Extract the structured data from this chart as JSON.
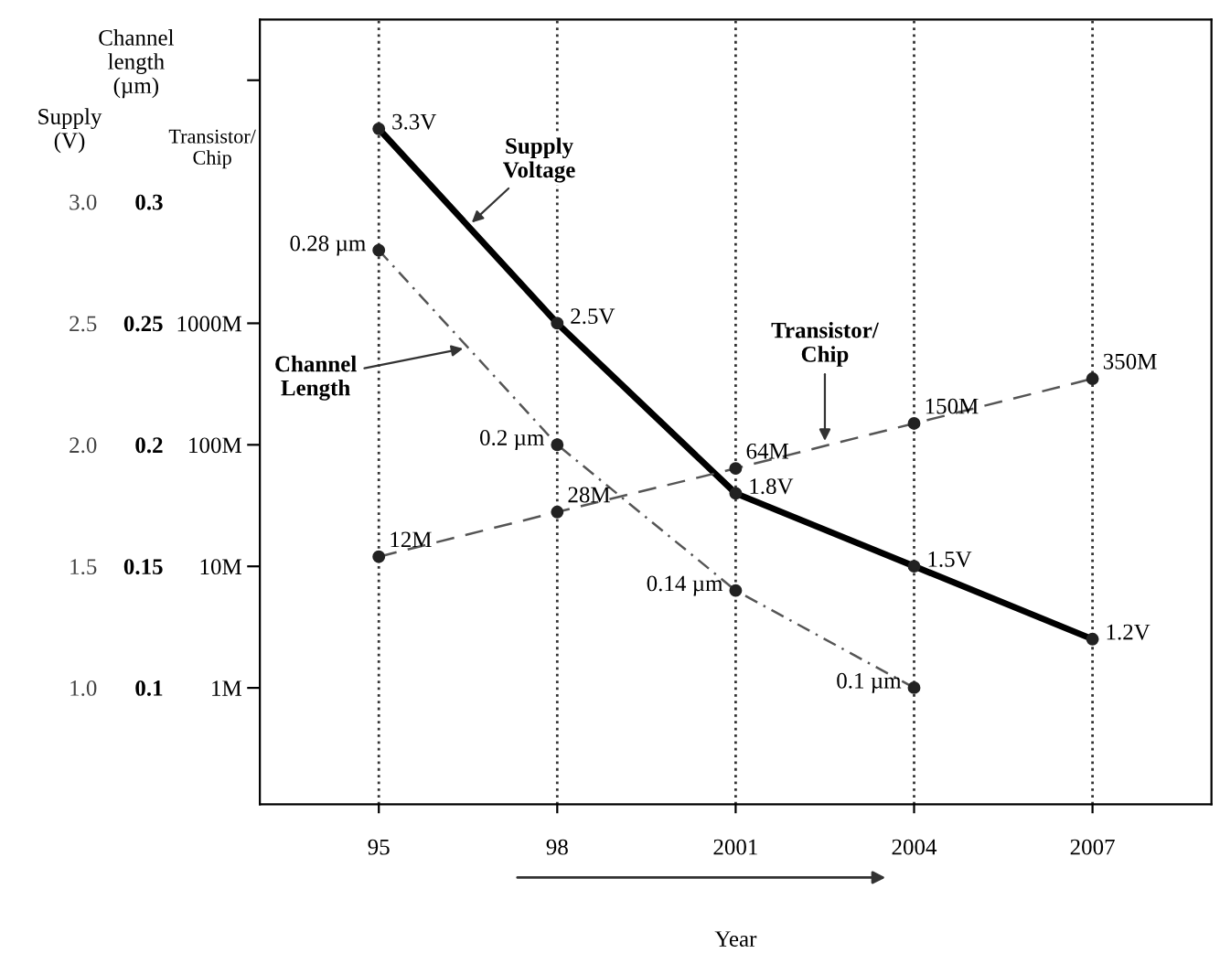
{
  "chart_data": {
    "type": "line",
    "x": [
      1995,
      1998,
      2001,
      2004,
      2007
    ],
    "xlabel": "Year",
    "ylabel": "Supply (V)",
    "y2label": "Channel length (µm)",
    "y3label": "Transistor/ Chip",
    "xlim": [
      1993,
      2009
    ],
    "xticks": [
      {
        "value": 1995,
        "label": "95"
      },
      {
        "value": 1998,
        "label": "98"
      },
      2001,
      2004,
      2007
    ],
    "ylim": [
      0.52,
      3.75
    ],
    "yticks": [
      {
        "value": 1,
        "label": "1.0"
      },
      1.5,
      {
        "value": 2,
        "label": "2.0"
      },
      2.5,
      {
        "value": 3,
        "label": "3.0"
      }
    ],
    "y2lim": [
      0.052,
      0.375
    ],
    "y2ticks": [
      0.1,
      0.15,
      0.2,
      0.25,
      0.3
    ],
    "y3lim": [
      0.11,
      316000
    ],
    "y3ticks": [
      {
        "value": 1,
        "label": "1M"
      },
      {
        "value": 10,
        "label": "10M"
      },
      {
        "value": 100,
        "label": "100M"
      },
      {
        "value": 1000,
        "label": "1000M"
      },
      {
        "value": 100000,
        "label": null
      }
    ],
    "log": "y3",
    "grid": "x",
    "legend": false,
    "marker": "circle",
    "series": [
      {
        "name": "Supply Voltage",
        "color": "#000000",
        "line_style": "solid",
        "values": [
          3.3,
          2.5,
          1.8,
          1.5,
          1.2
        ],
        "value_labels": [
          "3.3V",
          "2.5V",
          "1.8V",
          "1.5V",
          "1.2V"
        ]
      },
      {
        "name": "Channel Length",
        "color": "#555555",
        "line_style": "dashdot",
        "axis": "y2",
        "values": [
          0.28,
          0.2,
          0.14,
          0.1,
          null
        ],
        "value_labels": [
          "0.28 µm",
          "0.2 µm",
          "0.14 µm",
          "0.1 µm",
          null
        ]
      },
      {
        "name": "Transistor/ Chip",
        "color": "#555555",
        "line_style": "dashed",
        "axis": "y3",
        "values": [
          12,
          28,
          64,
          150,
          350
        ],
        "value_labels": [
          "12M",
          "28M",
          "64M",
          "150M",
          "350M"
        ]
      }
    ]
  }
}
